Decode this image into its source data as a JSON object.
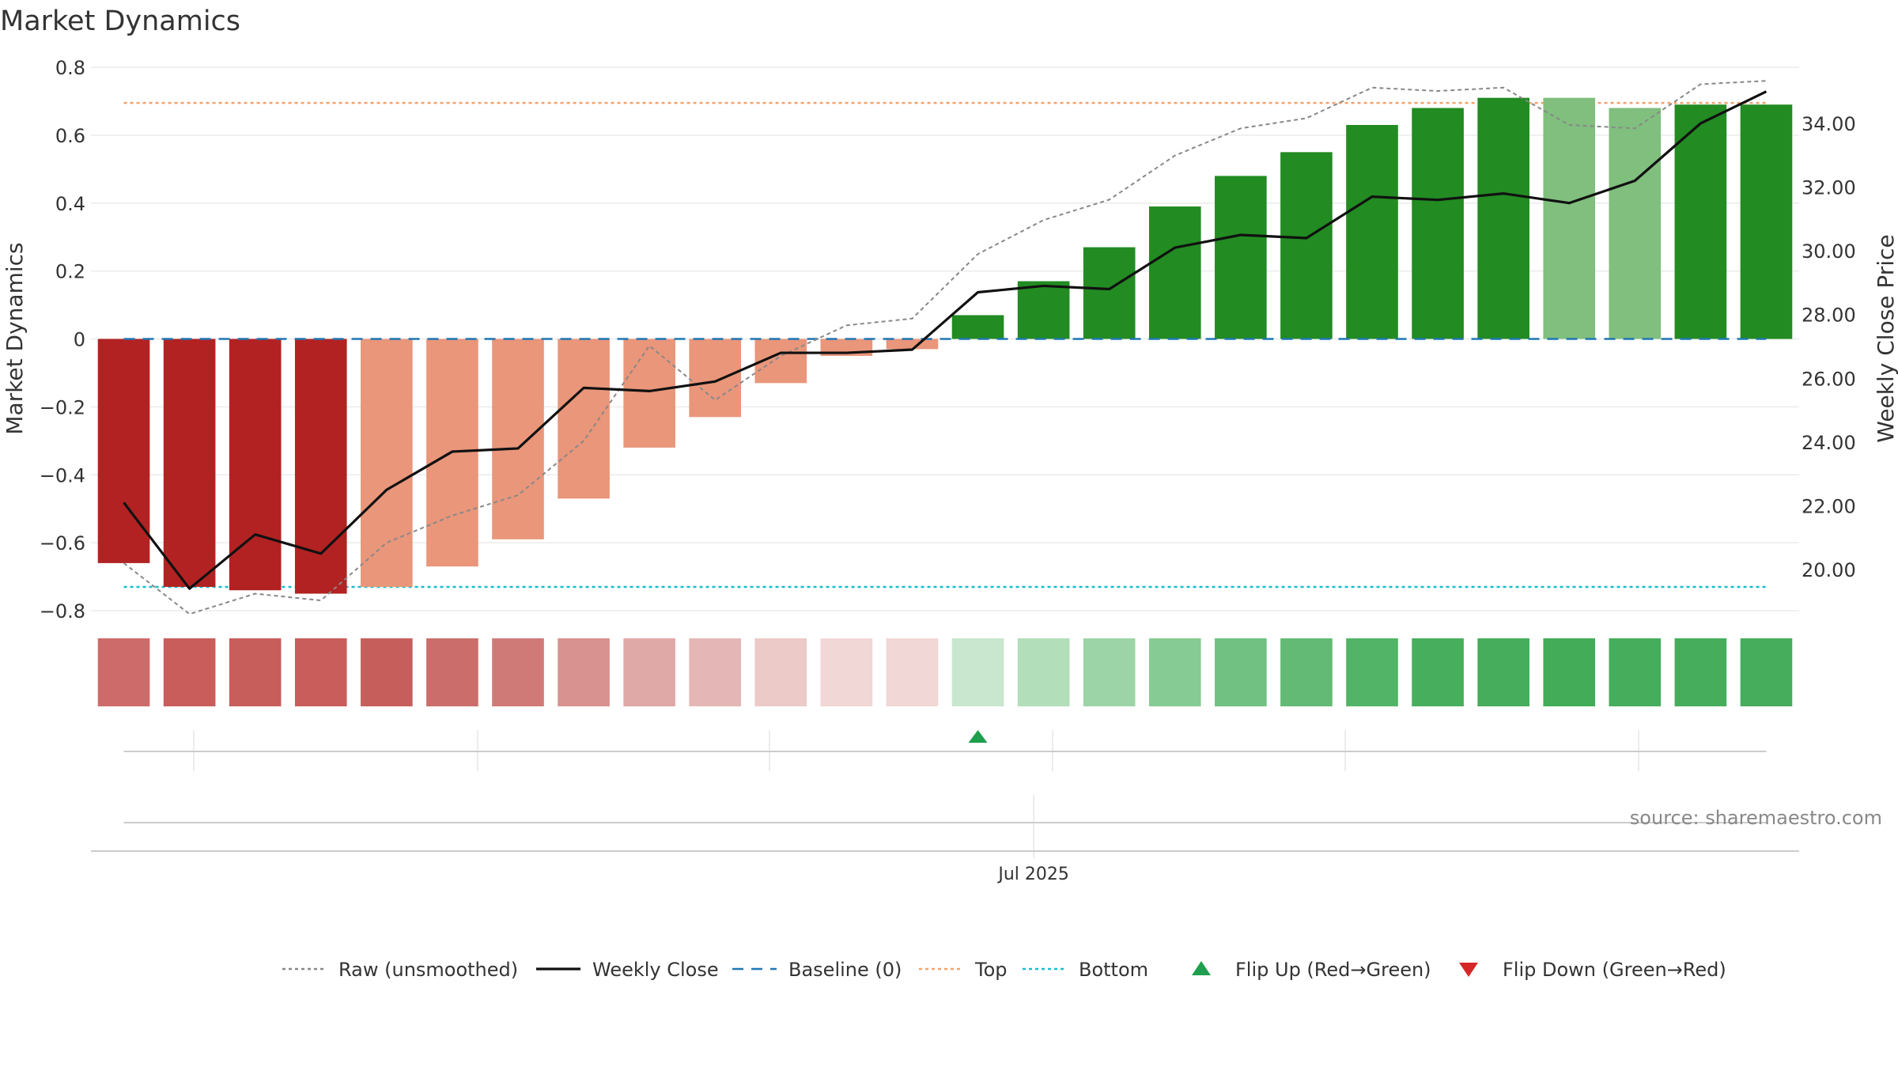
{
  "title": "Market Dynamics",
  "source": "source: sharemaestro.com",
  "chart_data": {
    "type": "bar",
    "title": "Market Dynamics",
    "ylabel_left": "Market Dynamics",
    "ylabel_right": "Weekly Close Price",
    "xlabel": "",
    "ylim_left": [
      -0.8,
      0.8
    ],
    "ylim_right": [
      18.3,
      35.7
    ],
    "yticks_left": [
      0.8,
      0.6,
      0.4,
      0.2,
      0,
      -0.2,
      -0.4,
      -0.6,
      -0.8
    ],
    "yticks_left_labels": [
      "0.8",
      "0.6",
      "0.4",
      "0.2",
      "0",
      "−0.2",
      "−0.4",
      "−0.6",
      "−0.8"
    ],
    "yticks_right": [
      34,
      32,
      30,
      28,
      26,
      24,
      22,
      20
    ],
    "yticks_right_labels": [
      "34.00",
      "32.00",
      "30.00",
      "28.00",
      "26.00",
      "24.00",
      "22.00",
      "20.00"
    ],
    "x_tick_label": "Jul 2025",
    "x_tick_index": 14.35,
    "grid": true,
    "weeks": 26,
    "bar_values": [
      -0.66,
      -0.73,
      -0.74,
      -0.75,
      -0.73,
      -0.67,
      -0.59,
      -0.47,
      -0.32,
      -0.23,
      -0.13,
      -0.05,
      -0.03,
      0.07,
      0.17,
      0.27,
      0.39,
      0.48,
      0.55,
      0.63,
      0.68,
      0.71,
      0.71,
      0.68,
      0.69,
      0.69
    ],
    "bar_colors": [
      "#b22222",
      "#b22222",
      "#b22222",
      "#b22222",
      "#e9967a",
      "#e9967a",
      "#e9967a",
      "#e9967a",
      "#e9967a",
      "#e9967a",
      "#e9967a",
      "#e9967a",
      "#e9967a",
      "#228b22",
      "#228b22",
      "#228b22",
      "#228b22",
      "#228b22",
      "#228b22",
      "#228b22",
      "#228b22",
      "#228b22",
      "#80bf7e",
      "#80bf7e",
      "#228b22",
      "#228b22"
    ],
    "raw_unsmoothed": [
      -0.66,
      -0.81,
      -0.75,
      -0.77,
      -0.6,
      -0.52,
      -0.46,
      -0.3,
      -0.02,
      -0.18,
      -0.05,
      0.04,
      0.06,
      0.25,
      0.35,
      0.41,
      0.54,
      0.62,
      0.65,
      0.74,
      0.73,
      0.74,
      0.63,
      0.62,
      0.75,
      0.76
    ],
    "weekly_close": [
      22.1,
      19.4,
      21.1,
      20.5,
      22.5,
      23.7,
      23.8,
      25.7,
      25.6,
      25.9,
      26.8,
      26.8,
      26.9,
      28.7,
      28.9,
      28.8,
      30.1,
      30.5,
      30.4,
      31.7,
      31.6,
      31.8,
      31.5,
      32.2,
      34.0,
      35.0
    ],
    "baseline": 0,
    "top": 0.695,
    "bottom": -0.73,
    "strip_colors": [
      "#cd6b6a",
      "#c85d5c",
      "#c85e5c",
      "#c85d5c",
      "#c65f5b",
      "#cb6d6a",
      "#d07a78",
      "#d89290",
      "#dfa9a7",
      "#e4b7b6",
      "#ebcac8",
      "#f1d7d6",
      "#f1d7d5",
      "#c8e7ce",
      "#b2deba",
      "#9dd4a7",
      "#86ca94",
      "#70c182",
      "#62ba74",
      "#52b466",
      "#47ae5d",
      "#45ad5b",
      "#43ac59",
      "#45ad5b",
      "#45ad5b",
      "#46ad5c"
    ],
    "flip_up_index": 13,
    "flip_down_index": null,
    "legend_position": "bottom-center",
    "legend": [
      {
        "label": "Raw (unsmoothed)",
        "kind": "line",
        "color": "#888888",
        "dash": "dotted"
      },
      {
        "label": "Weekly Close",
        "kind": "line",
        "color": "#111111",
        "dash": "solid"
      },
      {
        "label": "Baseline (0)",
        "kind": "line",
        "color": "#1f77b4",
        "dash": "dashed"
      },
      {
        "label": "Top",
        "kind": "line",
        "color": "#f4a26c",
        "dash": "dotted"
      },
      {
        "label": "Bottom",
        "kind": "line",
        "color": "#17becf",
        "dash": "dotted"
      },
      {
        "label": "Flip Up (Red→Green)",
        "kind": "marker-up",
        "color": "#1f9e4d"
      },
      {
        "label": "Flip Down (Green→Red)",
        "kind": "marker-down",
        "color": "#d62728"
      }
    ]
  }
}
